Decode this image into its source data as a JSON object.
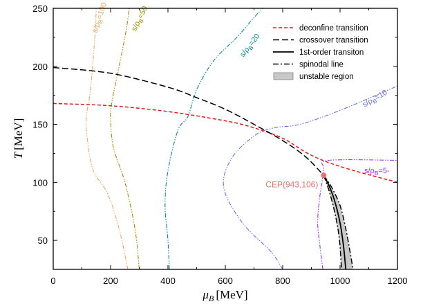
{
  "chart_data": {
    "type": "line",
    "x_axis": {
      "symbol": "μ",
      "subscript": "B",
      "unit": "[MeV]",
      "range": [
        0,
        1200
      ],
      "ticks": [
        "0",
        "200",
        "400",
        "600",
        "800",
        "1000",
        "1200"
      ]
    },
    "y_axis": {
      "symbol": "T",
      "unit": "[MeV]",
      "range": [
        25,
        250
      ],
      "ticks": [
        "50",
        "100",
        "150",
        "200",
        "250"
      ]
    },
    "grid": false,
    "legend": {
      "placement": "top-right",
      "entries": [
        {
          "label": "deconfine transition",
          "color": "#e31a1c",
          "style": "dash"
        },
        {
          "label": "crossover transition",
          "color": "#000000",
          "style": "longdash"
        },
        {
          "label": "1st-order transiton",
          "color": "#000000",
          "style": "solid"
        },
        {
          "label": "spinodal line",
          "color": "#000000",
          "style": "dashdot"
        },
        {
          "label": "unstable region",
          "color": "#c8c8c8",
          "style": "box"
        }
      ]
    },
    "critical_point": {
      "label": "CEP(943,106)",
      "x": 943,
      "y": 106,
      "color": "#f07070"
    },
    "series": [
      {
        "key": "deconfine",
        "color": "#e31a1c",
        "style": "dash",
        "points": [
          [
            0,
            168
          ],
          [
            200,
            166
          ],
          [
            400,
            161
          ],
          [
            600,
            153
          ],
          [
            700,
            147
          ],
          [
            800,
            138
          ],
          [
            880,
            126
          ],
          [
            950,
            118
          ],
          [
            1050,
            110
          ],
          [
            1200,
            100
          ]
        ]
      },
      {
        "key": "crossover",
        "color": "#000000",
        "style": "longdash",
        "points": [
          [
            0,
            199
          ],
          [
            200,
            194
          ],
          [
            400,
            182
          ],
          [
            500,
            173
          ],
          [
            600,
            163
          ],
          [
            700,
            150
          ],
          [
            800,
            136
          ],
          [
            880,
            122
          ],
          [
            943,
            106
          ]
        ]
      },
      {
        "key": "first_order",
        "color": "#000000",
        "style": "solid",
        "points": [
          [
            943,
            106
          ],
          [
            960,
            98
          ],
          [
            980,
            85
          ],
          [
            1000,
            65
          ],
          [
            1012,
            45
          ],
          [
            1020,
            25
          ]
        ]
      },
      {
        "key": "spinodal_left",
        "color": "#000000",
        "style": "dashdot",
        "points": [
          [
            943,
            106
          ],
          [
            965,
            90
          ],
          [
            985,
            70
          ],
          [
            998,
            50
          ],
          [
            1005,
            25
          ]
        ]
      },
      {
        "key": "spinodal_right",
        "color": "#000000",
        "style": "dashdot",
        "points": [
          [
            943,
            106
          ],
          [
            970,
            96
          ],
          [
            1000,
            80
          ],
          [
            1020,
            60
          ],
          [
            1035,
            40
          ],
          [
            1045,
            25
          ]
        ]
      }
    ],
    "isentropes": [
      {
        "label": "s/ρ",
        "subscript": "B",
        "value": "=100",
        "color": "#f4a460",
        "points": [
          [
            260,
            25
          ],
          [
            230,
            60
          ],
          [
            190,
            90
          ],
          [
            140,
            110
          ],
          [
            120,
            135
          ],
          [
            115,
            155
          ],
          [
            130,
            180
          ],
          [
            145,
            225
          ],
          [
            150,
            250
          ]
        ]
      },
      {
        "label": "s/ρ",
        "subscript": "B",
        "value": "=50",
        "color": "#a09000",
        "points": [
          [
            300,
            25
          ],
          [
            285,
            60
          ],
          [
            250,
            100
          ],
          [
            210,
            130
          ],
          [
            200,
            155
          ],
          [
            205,
            170
          ],
          [
            230,
            200
          ],
          [
            255,
            232
          ],
          [
            265,
            250
          ]
        ]
      },
      {
        "label": "s/ρ",
        "subscript": "B",
        "value": "=20",
        "color": "#008b8b",
        "points": [
          [
            405,
            25
          ],
          [
            400,
            50
          ],
          [
            390,
            80
          ],
          [
            400,
            110
          ],
          [
            435,
            145
          ],
          [
            470,
            157
          ],
          [
            500,
            180
          ],
          [
            560,
            205
          ],
          [
            640,
            225
          ],
          [
            700,
            242
          ],
          [
            730,
            250
          ]
        ]
      },
      {
        "label": "s/ρ",
        "subscript": "B",
        "value": "=10",
        "color": "#6670e0",
        "points": [
          [
            800,
            25
          ],
          [
            760,
            40
          ],
          [
            660,
            65
          ],
          [
            595,
            95
          ],
          [
            620,
            120
          ],
          [
            700,
            140
          ],
          [
            770,
            147
          ],
          [
            860,
            150
          ],
          [
            1000,
            162
          ],
          [
            1200,
            183
          ]
        ]
      },
      {
        "label": "s/ρ",
        "subscript": "B",
        "value": "=5-",
        "color": "#9b30ff",
        "points": [
          [
            940,
            25
          ],
          [
            930,
            45
          ],
          [
            922,
            65
          ],
          [
            928,
            85
          ],
          [
            937,
            100
          ],
          [
            943,
            112
          ],
          [
            960,
            119
          ],
          [
            1200,
            119
          ]
        ]
      }
    ]
  }
}
